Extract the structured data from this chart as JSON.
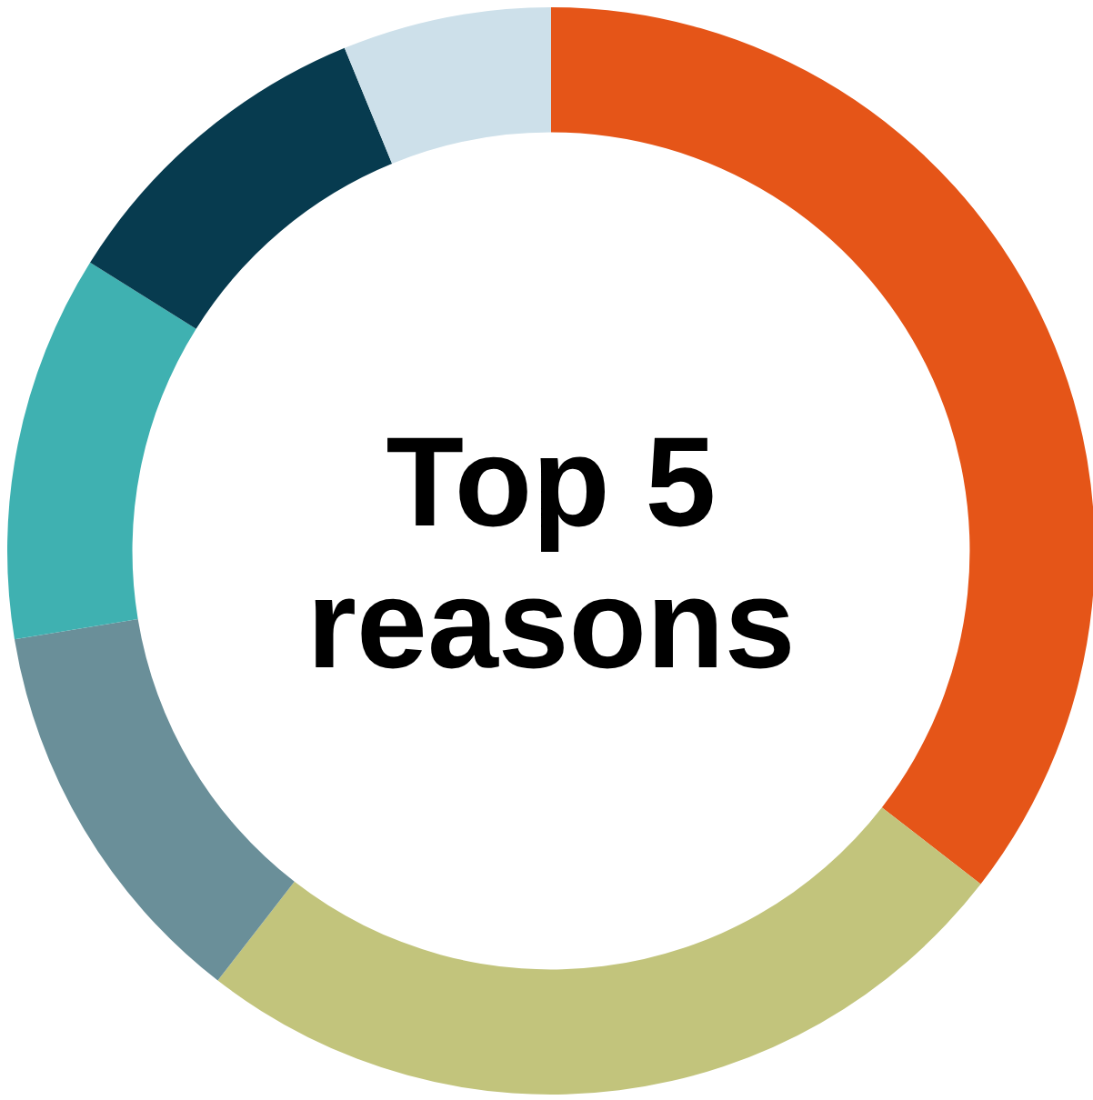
{
  "chart_data": {
    "type": "donut",
    "title": "Top 5 reasons",
    "categories": [
      null,
      null,
      null,
      null,
      null,
      null
    ],
    "values": [
      35.5,
      25,
      11.9,
      11.5,
      9.9,
      6.2
    ],
    "colors": [
      "#e55518",
      "#c2c47c",
      "#6a8f99",
      "#3fb1b1",
      "#073b4f",
      "#cde0ea"
    ]
  }
}
